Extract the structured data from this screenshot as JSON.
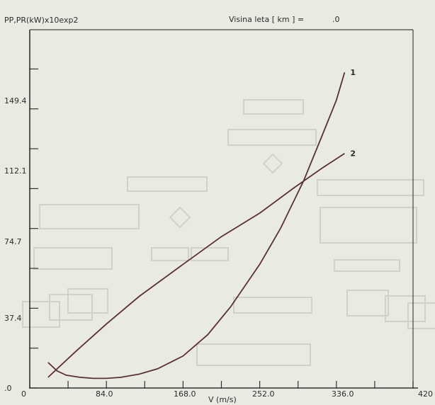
{
  "header": {
    "ylabel": "PP,PR(kW)x10exp2",
    "altitude_label": "Visina leta [ km ] =",
    "altitude_value": ".0"
  },
  "chart_data": {
    "type": "line",
    "title": "",
    "xlabel": "V (m/s)",
    "ylabel": "PP,PR(kW)x10exp2",
    "xlim": [
      0,
      420
    ],
    "ylim": [
      0,
      168
    ],
    "x_ticks": [
      "0",
      "84.0",
      "168.0",
      "252.0",
      "336.0",
      "420"
    ],
    "y_ticks": [
      ".0",
      "37.4",
      "74.7",
      "112.1",
      "149.4"
    ],
    "x_tick_values": [
      0,
      84,
      168,
      252,
      336,
      420
    ],
    "y_tick_values": [
      0,
      37.4,
      74.7,
      112.1,
      149.4
    ],
    "grid": false,
    "series": [
      {
        "name": "1",
        "x": [
          20,
          30,
          40,
          55,
          70,
          84,
          100,
          120,
          140,
          168,
          195,
          220,
          252,
          275,
          300,
          320,
          336,
          345
        ],
        "y": [
          12,
          8,
          6,
          5,
          4.5,
          4.5,
          5,
          6.5,
          9,
          15,
          25,
          38,
          58,
          75,
          97,
          118,
          135,
          148
        ]
      },
      {
        "name": "2",
        "x": [
          20,
          50,
          84,
          120,
          168,
          210,
          252,
          290,
          320,
          345
        ],
        "y": [
          5,
          17,
          30,
          43,
          58,
          71,
          82,
          94,
          103,
          110
        ]
      }
    ]
  }
}
